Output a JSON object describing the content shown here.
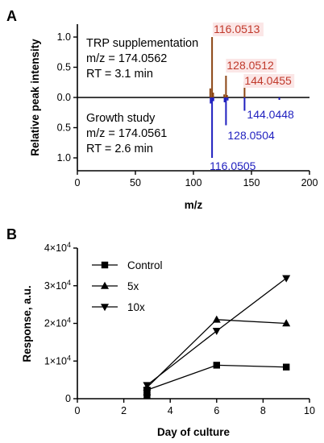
{
  "chart_data": [
    {
      "type": "bar",
      "panel_label": "A",
      "xlabel": "m/z",
      "ylabel": "Relative peak intensity",
      "xlim": [
        0,
        200
      ],
      "ylim": [
        -1.25,
        1.25
      ],
      "x_ticks": [
        "0",
        "50",
        "100",
        "150",
        "200"
      ],
      "y_ticks_top": [
        "1.0",
        "0.5",
        "0.0"
      ],
      "y_ticks_bottom": [
        "0.5",
        "1.0"
      ],
      "annotation_top": {
        "line1": "TRP supplementation",
        "line2": "m/z = 174.0562",
        "line3": "RT = 3.1 min"
      },
      "annotation_bottom": {
        "line1": "Growth study",
        "line2": "m/z = 174.0561",
        "line3": "RT = 2.6 min"
      },
      "series": [
        {
          "color": "#8b4513",
          "label_color": "#c0392b",
          "direction": "up",
          "peaks": [
            {
              "x": 114.5,
              "y": 0.15,
              "label": ""
            },
            {
              "x": 116.0513,
              "y": 1.0,
              "label": "116.0513"
            },
            {
              "x": 117.0,
              "y": 0.08,
              "label": ""
            },
            {
              "x": 126.5,
              "y": 0.05,
              "label": ""
            },
            {
              "x": 128.0512,
              "y": 0.36,
              "label": "128.0512"
            },
            {
              "x": 129.0,
              "y": 0.04,
              "label": ""
            },
            {
              "x": 144.0455,
              "y": 0.26,
              "label": "144.0455"
            }
          ]
        },
        {
          "color": "#1f1fbf",
          "label_color": "#1f1fbf",
          "direction": "down",
          "peaks": [
            {
              "x": 114.8,
              "y": 0.1,
              "label": ""
            },
            {
              "x": 116.0505,
              "y": 1.0,
              "label": "116.0505"
            },
            {
              "x": 117.2,
              "y": 0.06,
              "label": ""
            },
            {
              "x": 126.8,
              "y": 0.08,
              "label": ""
            },
            {
              "x": 128.0504,
              "y": 0.46,
              "label": "128.0504"
            },
            {
              "x": 129.5,
              "y": 0.05,
              "label": ""
            },
            {
              "x": 144.0448,
              "y": 0.22,
              "label": "144.0448"
            },
            {
              "x": 174.0,
              "y": 0.04,
              "label": ""
            }
          ]
        }
      ]
    },
    {
      "type": "line",
      "panel_label": "B",
      "xlabel": "Day of culture",
      "ylabel": "Response, a.u.",
      "xlim": [
        0,
        10
      ],
      "ylim": [
        0,
        40000
      ],
      "x_ticks": [
        "0",
        "2",
        "4",
        "6",
        "8",
        "10"
      ],
      "y_ticks": [
        {
          "value": 0,
          "base": "0",
          "exp": ""
        },
        {
          "value": 10000,
          "base": "1×10",
          "exp": "4"
        },
        {
          "value": 20000,
          "base": "2×10",
          "exp": "4"
        },
        {
          "value": 30000,
          "base": "3×10",
          "exp": "4"
        },
        {
          "value": 40000,
          "base": "4×10",
          "exp": "4"
        }
      ],
      "legend_position": "top-left",
      "series": [
        {
          "name": "Control",
          "marker": "square",
          "x": [
            3,
            3,
            3,
            6,
            9
          ],
          "y": [
            1000,
            1800,
            2300,
            8900,
            8400
          ]
        },
        {
          "name": "5x",
          "marker": "triangle-up",
          "x": [
            3,
            3,
            6,
            9
          ],
          "y": [
            1700,
            3000,
            21000,
            20000
          ]
        },
        {
          "name": "10x",
          "marker": "triangle-down",
          "x": [
            3,
            3,
            6,
            9
          ],
          "y": [
            2200,
            3600,
            18000,
            32000
          ]
        }
      ]
    }
  ]
}
